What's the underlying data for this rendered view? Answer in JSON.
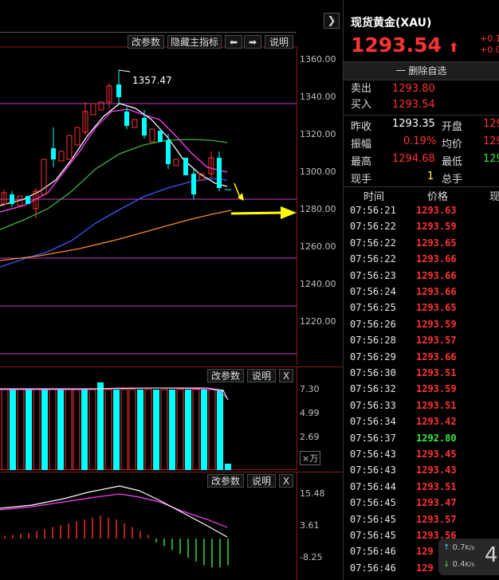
{
  "main_chart": {
    "buttons": {
      "params": "改参数",
      "hide_main": "隐藏主指标",
      "explain": "说明"
    },
    "y_ticks": [
      "1360.00",
      "1340.00",
      "1320.00",
      "1300.00",
      "1280.00",
      "1260.00",
      "1240.00",
      "1220.00"
    ],
    "high_annotation": "1357.47"
  },
  "volume_panel": {
    "buttons": {
      "params": "改参数",
      "explain": "说明",
      "close": "X"
    },
    "y_ticks": [
      "7.30",
      "4.99",
      "2.69"
    ],
    "unit_label": "×万"
  },
  "macd_panel": {
    "buttons": {
      "params": "改参数",
      "explain": "说明",
      "close": "X"
    },
    "y_ticks": [
      "15.48",
      "3.61",
      "-8.25"
    ]
  },
  "quote": {
    "title": "现货黄金(XAU)",
    "price": "1293.54",
    "change1": "+0.1",
    "change2": "+0.0",
    "remove_watch": "一 删除自选",
    "sell_label": "卖出",
    "sell_value": "1293.80",
    "buy_label": "买入",
    "buy_value": "1293.54",
    "prev_close_label": "昨收",
    "prev_close_value": "1293.35",
    "open_label": "开盘",
    "open_value": "129",
    "amplitude_label": "振幅",
    "amplitude_value": "0.19%",
    "avg_label": "均价",
    "avg_value": "129",
    "high_label": "最高",
    "high_value": "1294.68",
    "low_label": "最低",
    "low_value": "129",
    "current_hand_label": "现手",
    "current_hand_value": "1",
    "total_hand_label": "总手"
  },
  "ticks_header": {
    "time": "时间",
    "price": "价格",
    "volume": "现"
  },
  "ticks": [
    {
      "time": "07:56:21",
      "price": "1293.63",
      "color": "red"
    },
    {
      "time": "07:56:22",
      "price": "1293.59",
      "color": "red"
    },
    {
      "time": "07:56:22",
      "price": "1293.65",
      "color": "red"
    },
    {
      "time": "07:56:22",
      "price": "1293.66",
      "color": "red"
    },
    {
      "time": "07:56:23",
      "price": "1293.66",
      "color": "red"
    },
    {
      "time": "07:56:24",
      "price": "1293.66",
      "color": "red"
    },
    {
      "time": "07:56:25",
      "price": "1293.65",
      "color": "red"
    },
    {
      "time": "07:56:26",
      "price": "1293.59",
      "color": "red"
    },
    {
      "time": "07:56:28",
      "price": "1293.57",
      "color": "red"
    },
    {
      "time": "07:56:29",
      "price": "1293.66",
      "color": "red"
    },
    {
      "time": "07:56:30",
      "price": "1293.51",
      "color": "red"
    },
    {
      "time": "07:56:32",
      "price": "1293.59",
      "color": "red"
    },
    {
      "time": "07:56:33",
      "price": "1293.51",
      "color": "red"
    },
    {
      "time": "07:56:34",
      "price": "1293.42",
      "color": "red"
    },
    {
      "time": "07:56:37",
      "price": "1292.80",
      "color": "green"
    },
    {
      "time": "07:56:43",
      "price": "1293.45",
      "color": "red"
    },
    {
      "time": "07:56:43",
      "price": "1293.43",
      "color": "red"
    },
    {
      "time": "07:56:44",
      "price": "1293.51",
      "color": "red"
    },
    {
      "time": "07:56:45",
      "price": "1293.47",
      "color": "red"
    },
    {
      "time": "07:56:45",
      "price": "1293.57",
      "color": "red"
    },
    {
      "time": "07:56:45",
      "price": "1293.56",
      "color": "red"
    },
    {
      "time": "07:56:46",
      "price": "129",
      "color": "red"
    },
    {
      "time": "07:56:46",
      "price": "129",
      "color": "red"
    }
  ],
  "network": {
    "up": "0.7",
    "down": "0.4",
    "unit": "K/s",
    "badge": "4"
  },
  "colors": {
    "up": "#ff3232",
    "down": "#00ffff",
    "magenta": "#ff40ff",
    "yellow": "#ffff00"
  }
}
